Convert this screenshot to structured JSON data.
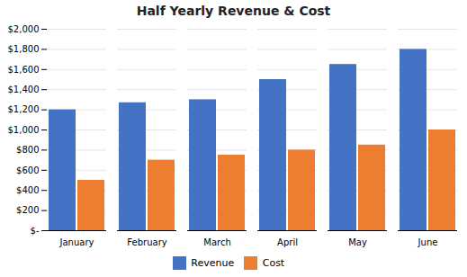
{
  "chart_data": {
    "type": "bar",
    "title": "Half Yearly Revenue & Cost",
    "categories": [
      "January",
      "February",
      "March",
      "April",
      "May",
      "June"
    ],
    "series": [
      {
        "name": "Revenue",
        "color": "#4472C4",
        "values": [
          1200,
          1270,
          1300,
          1500,
          1650,
          1800
        ]
      },
      {
        "name": "Cost",
        "color": "#ED7D31",
        "values": [
          500,
          700,
          750,
          800,
          850,
          1000
        ]
      }
    ],
    "ylim": [
      0,
      2000
    ],
    "yticks": [
      {
        "value": 0,
        "label": "$-"
      },
      {
        "value": 200,
        "label": "$200"
      },
      {
        "value": 400,
        "label": "$400"
      },
      {
        "value": 600,
        "label": "$600"
      },
      {
        "value": 800,
        "label": "$800"
      },
      {
        "value": 1000,
        "label": "$1,000"
      },
      {
        "value": 1200,
        "label": "$1,200"
      },
      {
        "value": 1400,
        "label": "$1,400"
      },
      {
        "value": 1600,
        "label": "$1,600"
      },
      {
        "value": 1800,
        "label": "$1,800"
      },
      {
        "value": 2000,
        "label": "$2,000"
      }
    ],
    "grid": true,
    "legend": "bottom"
  }
}
